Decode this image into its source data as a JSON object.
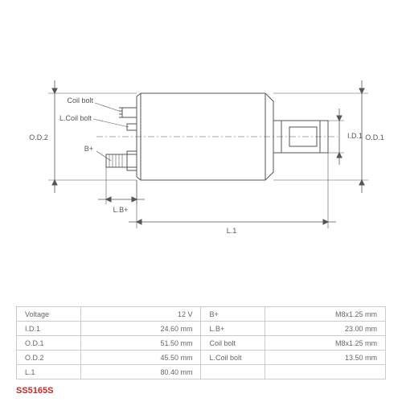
{
  "part_number": "SS5165S",
  "diagram": {
    "type": "engineering-drawing",
    "stroke_color": "#555555",
    "stroke_width": 1,
    "background": "#ffffff",
    "font_size": 9,
    "labels": {
      "od2": "O.D.2",
      "od1": "O.D.1",
      "id1": "I.D.1",
      "l1": "L.1",
      "lb_plus": "L.B+",
      "b_plus": "B+",
      "coil_bolt": "Coil bolt",
      "l_coil_bolt": "L.Coil bolt"
    }
  },
  "specs": {
    "rows": [
      [
        {
          "label": "Voltage",
          "value": "12 V"
        },
        {
          "label": "B+",
          "value": "M8x1.25 mm"
        }
      ],
      [
        {
          "label": "I.D.1",
          "value": "24.60 mm"
        },
        {
          "label": "L.B+",
          "value": "23.00 mm"
        }
      ],
      [
        {
          "label": "O.D.1",
          "value": "51.50 mm"
        },
        {
          "label": "Coil bolt",
          "value": "M8x1.25 mm"
        }
      ],
      [
        {
          "label": "O.D.2",
          "value": "45.50 mm"
        },
        {
          "label": "L.Coil bolt",
          "value": "13.50 mm"
        }
      ],
      [
        {
          "label": "L.1",
          "value": "80.40 mm"
        },
        {
          "label": "",
          "value": ""
        }
      ]
    ]
  },
  "colors": {
    "accent": "#c62828",
    "border": "#cccccc",
    "text": "#555555"
  }
}
